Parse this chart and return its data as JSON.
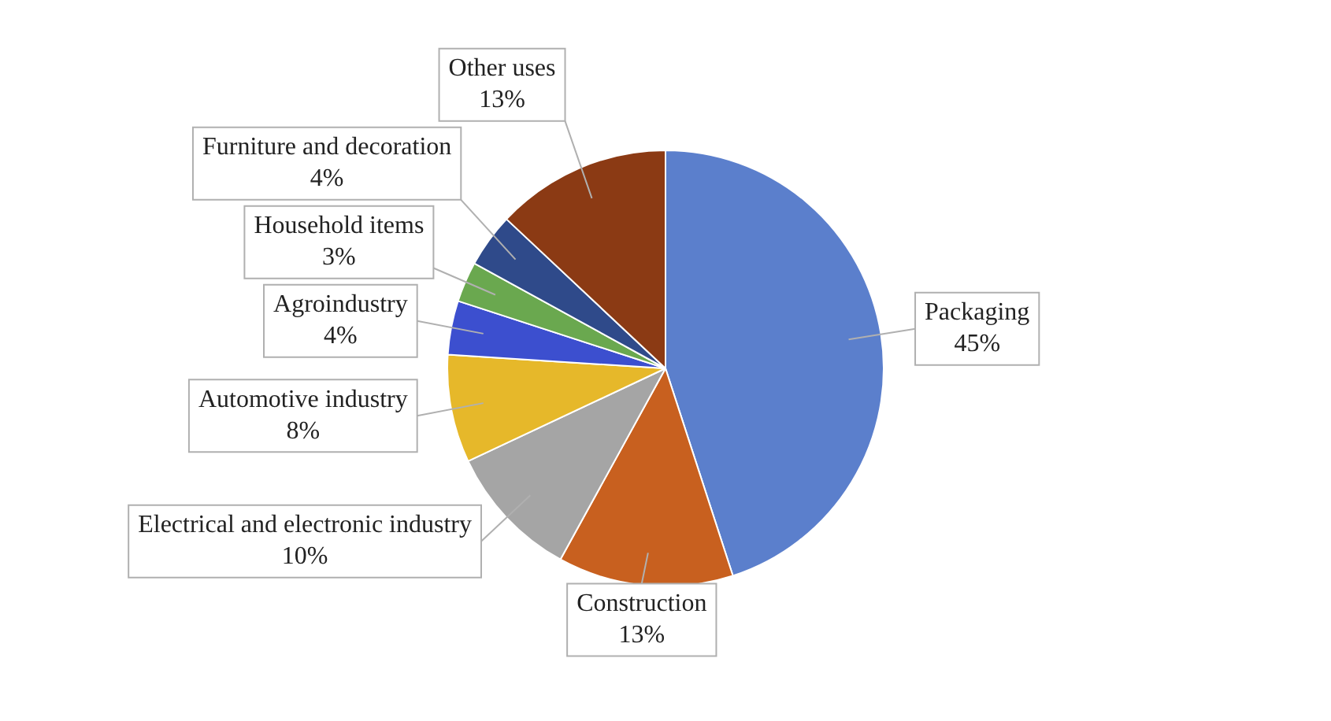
{
  "chart_data": {
    "type": "pie",
    "categories": [
      "Packaging",
      "Construction",
      "Electrical and electronic industry",
      "Automotive industry",
      "Agroindustry",
      "Household items",
      "Furniture and decoration",
      "Other uses"
    ],
    "values": [
      45,
      13,
      10,
      8,
      4,
      3,
      4,
      13
    ],
    "value_labels": [
      "45%",
      "13%",
      "10%",
      "8%",
      "4%",
      "3%",
      "4%",
      "13%"
    ],
    "colors": [
      "#5b7fcc",
      "#c8601f",
      "#a5a5a5",
      "#e6b82a",
      "#3c4fcf",
      "#6aa84f",
      "#2f4a8a",
      "#8b3a14"
    ],
    "legend": false
  }
}
